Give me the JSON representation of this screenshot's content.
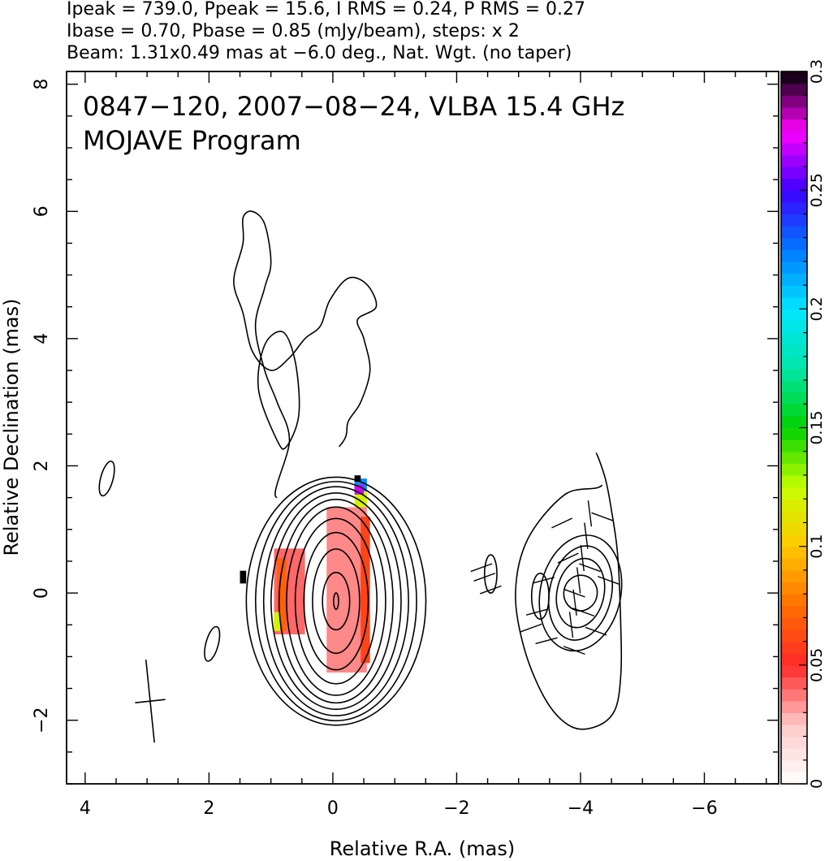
{
  "header": {
    "line1": "Ipeak = 739.0, Ppeak = 15.6, I RMS = 0.24, P RMS = 0.27",
    "line2": "Ibase = 0.70, Pbase = 0.85 (mJy/beam), steps: x 2",
    "line3": "Beam: 1.31x0.49 mas at −6.0 deg., Nat. Wgt. (no taper)"
  },
  "chart_data": {
    "type": "heatmap",
    "title": "0847−120, 2007−08−24, VLBA 15.4 GHz",
    "subtitle": "MOJAVE Program",
    "xlabel": "Relative R.A. (mas)",
    "ylabel": "Relative Declination (mas)",
    "xlim": [
      4.3,
      -7.2
    ],
    "ylim": [
      -3.0,
      8.2
    ],
    "x_ticks": [
      4,
      2,
      0,
      -2,
      -4,
      -6
    ],
    "x_tick_labels": [
      "4",
      "2",
      "0",
      "−2",
      "−4",
      "−6"
    ],
    "y_ticks": [
      -2,
      0,
      2,
      4,
      6,
      8
    ],
    "y_tick_labels": [
      "−2",
      "0",
      "2",
      "4",
      "6",
      "8"
    ],
    "colorbar": {
      "range": [
        0,
        0.3
      ],
      "ticks": [
        0,
        0.05,
        0.1,
        0.15,
        0.2,
        0.25,
        0.3
      ],
      "tick_labels": [
        "0",
        "0.05",
        "0.1",
        "0.15",
        "0.2",
        "0.25",
        "0.3"
      ]
    },
    "beam": {
      "major_mas": 1.31,
      "minor_mas": 0.49,
      "pa_deg": -6.0,
      "center": [
        2.95,
        -1.7
      ]
    },
    "total_intensity_contours": {
      "center": [
        0,
        0
      ],
      "levels_mJy_per_beam": [
        0.7,
        1.4,
        2.8,
        5.6,
        11.2,
        22.4,
        44.8,
        89.6,
        179.2,
        358.4
      ],
      "ellipse_semi_axes_mas": [
        [
          1.45,
          1.95
        ],
        [
          1.3,
          1.88
        ],
        [
          1.17,
          1.8
        ],
        [
          1.05,
          1.7
        ],
        [
          0.92,
          1.6
        ],
        [
          0.8,
          1.48
        ],
        [
          0.66,
          1.3
        ],
        [
          0.52,
          1.08
        ],
        [
          0.38,
          0.82
        ],
        [
          0.22,
          0.45
        ],
        [
          0.04,
          0.13
        ]
      ],
      "jet_outline_mas": [
        [
          -0.1,
          2.3
        ],
        [
          -0.25,
          2.7
        ],
        [
          -0.45,
          3.0
        ],
        [
          -0.6,
          3.5
        ],
        [
          -0.5,
          4.0
        ],
        [
          -0.4,
          4.3
        ],
        [
          -0.7,
          4.5
        ],
        [
          -0.55,
          4.85
        ],
        [
          -0.25,
          4.95
        ],
        [
          0.05,
          4.6
        ],
        [
          0.2,
          4.2
        ],
        [
          0.45,
          4.0
        ],
        [
          0.7,
          3.7
        ],
        [
          1.0,
          3.5
        ],
        [
          1.3,
          3.8
        ],
        [
          1.45,
          4.4
        ],
        [
          1.6,
          4.9
        ],
        [
          1.45,
          5.5
        ],
        [
          1.45,
          5.9
        ],
        [
          1.3,
          6.0
        ],
        [
          1.1,
          5.8
        ],
        [
          1.0,
          5.2
        ],
        [
          1.1,
          4.8
        ],
        [
          1.25,
          4.2
        ],
        [
          1.1,
          3.5
        ],
        [
          0.9,
          3.0
        ],
        [
          0.7,
          2.4
        ],
        [
          0.9,
          1.5
        ]
      ],
      "inner_jet_loop_mas": [
        [
          0.9,
          2.4
        ],
        [
          1.2,
          3.2
        ],
        [
          1.1,
          3.9
        ],
        [
          0.8,
          4.1
        ],
        [
          0.6,
          3.6
        ],
        [
          0.55,
          2.8
        ],
        [
          0.75,
          2.3
        ]
      ],
      "isolated_components_mas": [
        [
          3.65,
          1.8
        ],
        [
          1.95,
          -0.8
        ]
      ]
    },
    "polarization_contours": {
      "center": [
        -4.0,
        0.0
      ],
      "ellipse_semi_axes_mas": [
        [
          0.27,
          0.28
        ],
        [
          0.38,
          0.55
        ],
        [
          0.5,
          0.75
        ],
        [
          0.65,
          0.92
        ]
      ],
      "secondary_component": [
        -3.35,
        -0.05
      ],
      "outer_outline_mas": [
        [
          -4.35,
          1.7
        ],
        [
          -3.75,
          1.55
        ],
        [
          -3.15,
          0.85
        ],
        [
          -2.95,
          0.0
        ],
        [
          -3.1,
          -0.9
        ],
        [
          -3.45,
          -1.7
        ],
        [
          -3.85,
          -2.1
        ],
        [
          -4.25,
          -2.1
        ],
        [
          -4.55,
          -1.85
        ],
        [
          -4.65,
          -1.3
        ],
        [
          -4.65,
          -0.5
        ],
        [
          -4.6,
          0.6
        ],
        [
          -4.5,
          1.3
        ],
        [
          -4.4,
          1.8
        ],
        [
          -4.25,
          2.2
        ]
      ],
      "evpa_vectors_mas": [
        [
          -2.4,
          0.4,
          20
        ],
        [
          -2.55,
          0.05,
          20
        ],
        [
          -2.45,
          0.25,
          20
        ],
        [
          -3.4,
          0.2,
          15
        ],
        [
          -3.3,
          -0.3,
          15
        ],
        [
          -3.2,
          -0.55,
          20
        ],
        [
          -3.45,
          -0.75,
          15
        ],
        [
          -3.7,
          1.1,
          25
        ],
        [
          -3.8,
          0.55,
          25
        ],
        [
          -3.9,
          0.0,
          -20
        ],
        [
          -4.05,
          -0.3,
          -20
        ],
        [
          -4.15,
          0.4,
          -20
        ],
        [
          -4.25,
          -0.6,
          -20
        ],
        [
          -3.9,
          -0.9,
          -20
        ],
        [
          -4.35,
          1.2,
          -20
        ],
        [
          -4.45,
          0.2,
          -20
        ]
      ]
    },
    "fractional_polarization_pixels": {
      "description": "values shown by colour against the colorbar (0 to 0.3)",
      "cells": [
        {
          "x": [
            -0.55,
            0.1
          ],
          "y": [
            -1.25,
            1.35
          ],
          "value": 0.035
        },
        {
          "x": [
            0.45,
            0.95
          ],
          "y": [
            -0.65,
            0.7
          ],
          "value": 0.04
        },
        {
          "x": [
            -0.6,
            -0.45
          ],
          "y": [
            -1.1,
            1.2
          ],
          "value": 0.06
        },
        {
          "x": [
            0.75,
            0.9
          ],
          "y": [
            -0.6,
            0.55
          ],
          "value": 0.07
        },
        {
          "x": [
            0.85,
            0.95
          ],
          "y": [
            -0.6,
            -0.3
          ],
          "value": 0.12
        },
        {
          "x": [
            -0.55,
            -0.35
          ],
          "y": [
            1.35,
            1.6
          ],
          "value": 0.12
        },
        {
          "x": [
            -0.55,
            -0.35
          ],
          "y": [
            1.6,
            1.8
          ],
          "value": 0.22
        },
        {
          "x": [
            -0.5,
            -0.35
          ],
          "y": [
            1.55,
            1.7
          ],
          "value": 0.27
        },
        {
          "x": [
            -0.45,
            -0.35
          ],
          "y": [
            1.75,
            1.85
          ],
          "value": 0.3
        },
        {
          "x": [
            1.4,
            1.5
          ],
          "y": [
            0.15,
            0.35
          ],
          "value": 0.3
        }
      ]
    },
    "grid": false,
    "legend": "none"
  }
}
